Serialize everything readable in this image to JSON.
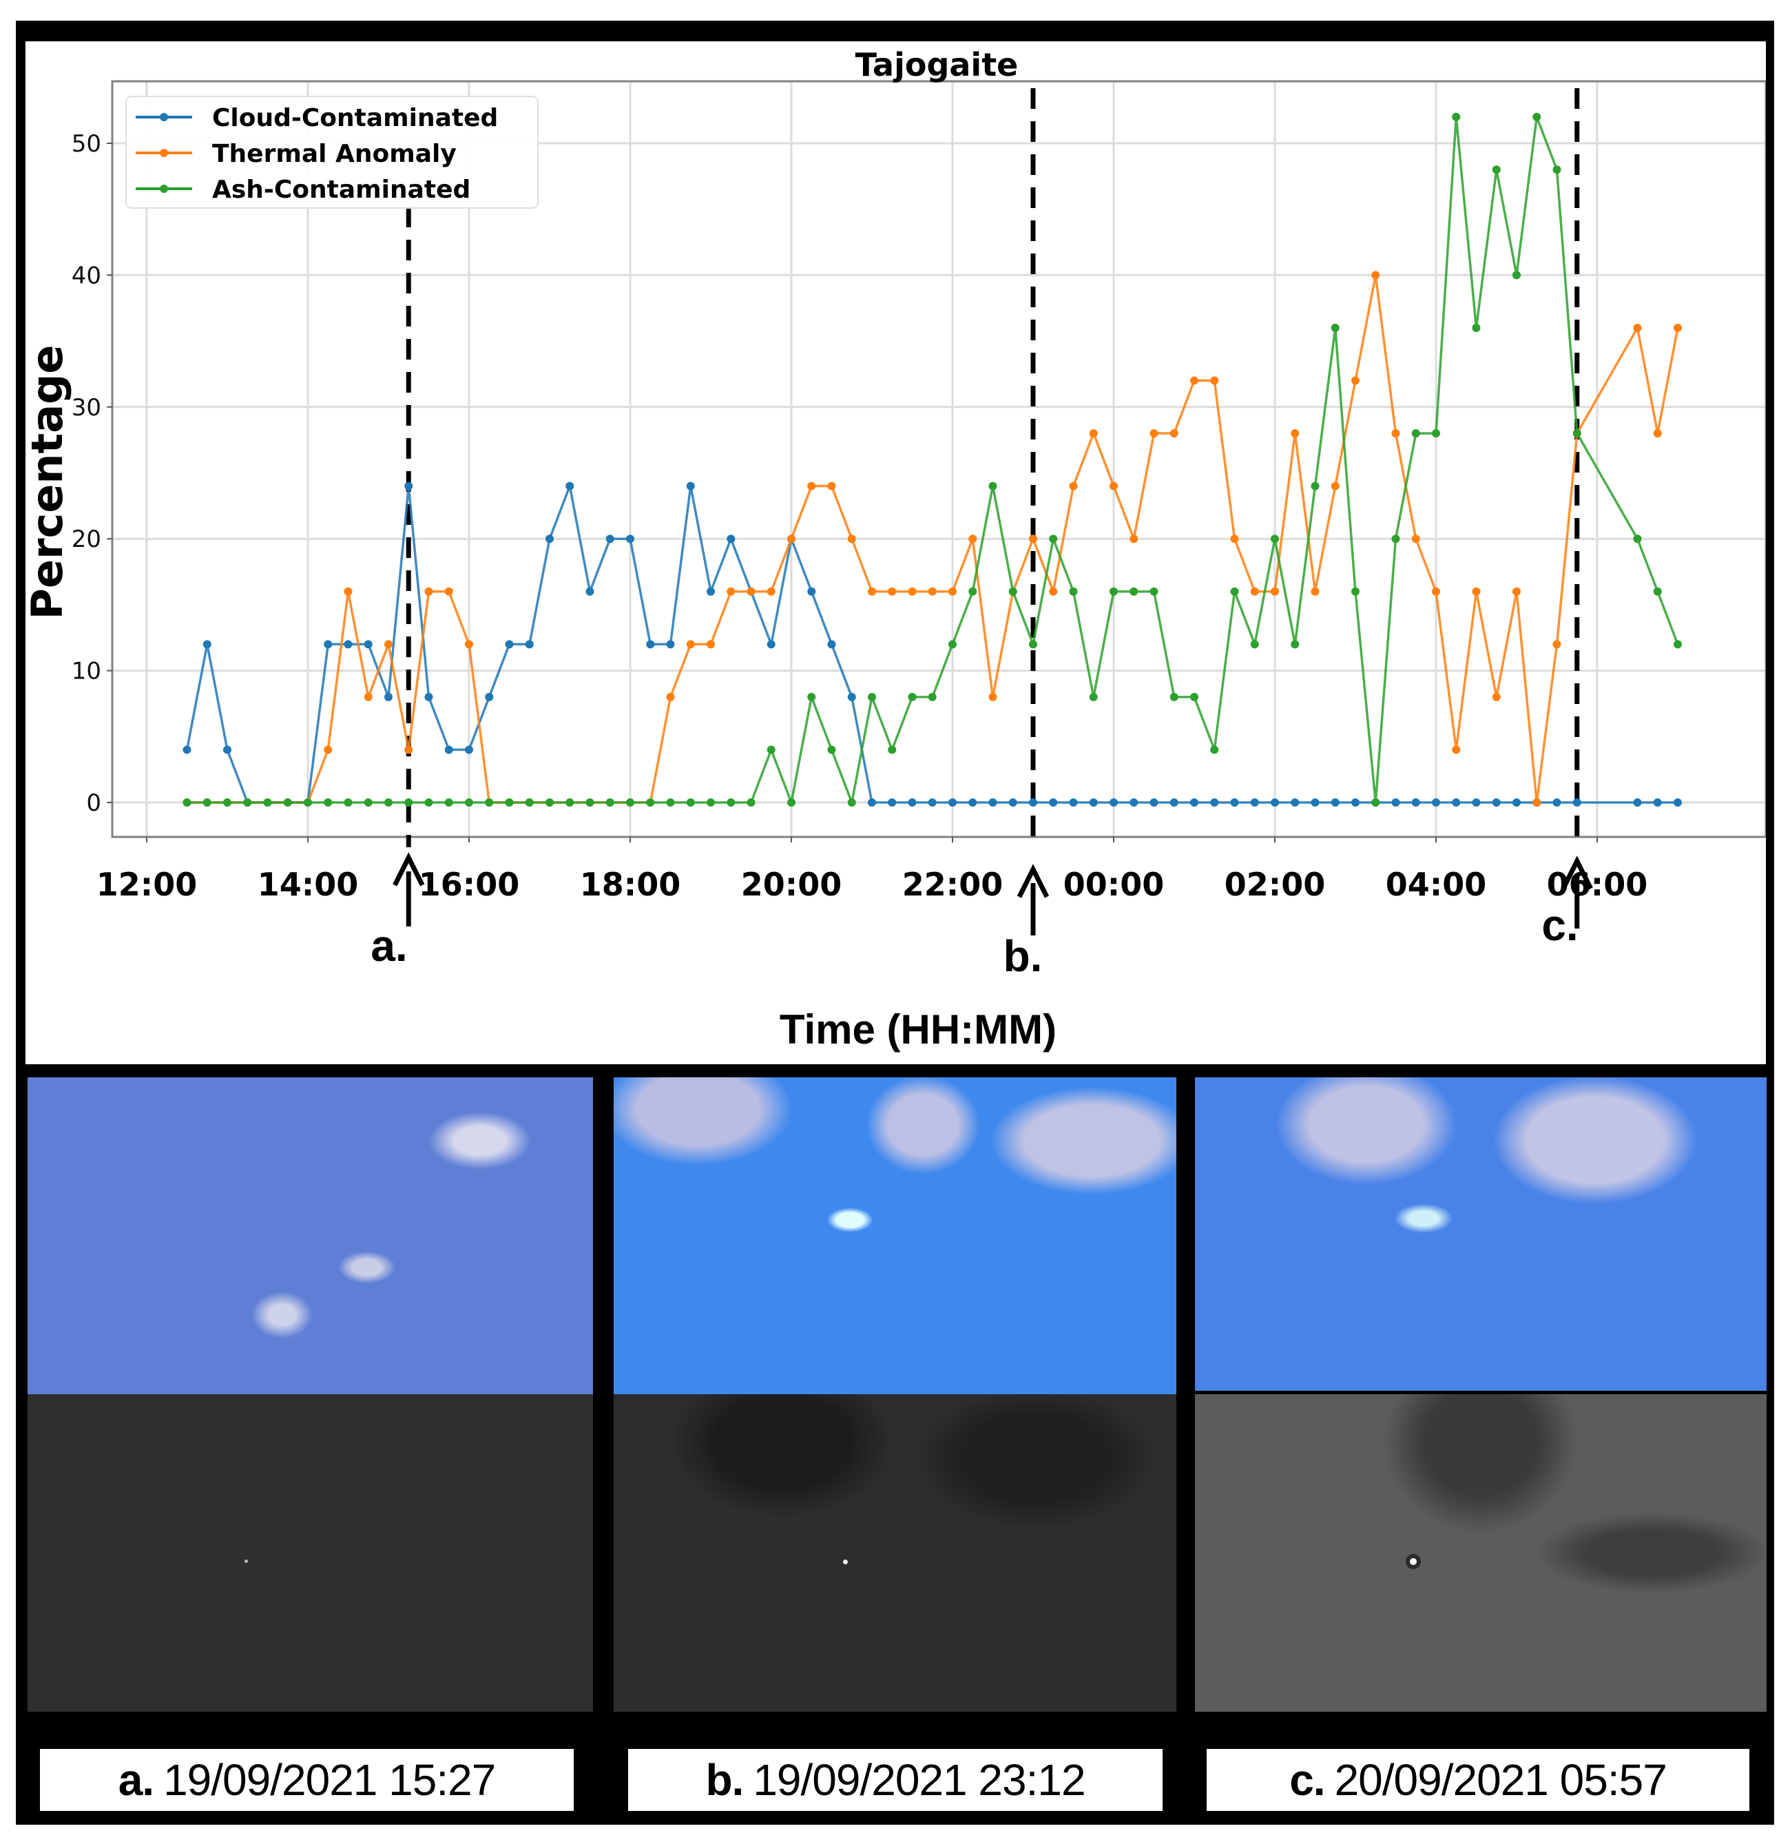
{
  "figure": {
    "title": "Tajogaite",
    "xlabel": "Time (HH:MM)",
    "ylabel": "Percentage",
    "colors": {
      "cloud": "#1f77b4",
      "thermal": "#ff7f0e",
      "ash": "#2ca02c",
      "frame": "#000000"
    }
  },
  "events": [
    {
      "id": "a",
      "label": "a.",
      "time": "15:15"
    },
    {
      "id": "b",
      "label": "b.",
      "time": "23:00"
    },
    {
      "id": "c",
      "label": "c.",
      "time": "05:45"
    }
  ],
  "captions": [
    {
      "letter": "a.",
      "text": "19/09/2021 15:27"
    },
    {
      "letter": "b.",
      "text": "19/09/2021 23:12"
    },
    {
      "letter": "c.",
      "text": "20/09/2021 05:57"
    }
  ],
  "chart_data": {
    "type": "line",
    "title": "Tajogaite",
    "xlabel": "Time (HH:MM)",
    "ylabel": "Percentage",
    "xticks": [
      "12:00",
      "14:00",
      "16:00",
      "18:00",
      "20:00",
      "22:00",
      "00:00",
      "02:00",
      "04:00",
      "06:00"
    ],
    "yticks": [
      0,
      10,
      20,
      30,
      40,
      50
    ],
    "ylim": [
      -2.5,
      54.5
    ],
    "grid": true,
    "legend_position": "upper left",
    "x": [
      "12:30",
      "12:45",
      "13:00",
      "13:15",
      "13:30",
      "13:45",
      "14:00",
      "14:15",
      "14:30",
      "14:45",
      "15:00",
      "15:15",
      "15:30",
      "15:45",
      "16:00",
      "16:15",
      "16:30",
      "16:45",
      "17:00",
      "17:15",
      "17:30",
      "17:45",
      "18:00",
      "18:15",
      "18:30",
      "18:45",
      "19:00",
      "19:15",
      "19:30",
      "19:45",
      "20:00",
      "20:15",
      "20:30",
      "20:45",
      "21:00",
      "21:15",
      "21:30",
      "21:45",
      "22:00",
      "22:15",
      "22:30",
      "22:45",
      "23:00",
      "23:15",
      "23:30",
      "23:45",
      "00:00",
      "00:15",
      "00:30",
      "00:45",
      "01:00",
      "01:15",
      "01:30",
      "01:45",
      "02:00",
      "02:15",
      "02:30",
      "02:45",
      "03:00",
      "03:15",
      "03:30",
      "03:45",
      "04:00",
      "04:15",
      "04:30",
      "04:45",
      "05:00",
      "05:15",
      "05:30",
      "05:45",
      "06:30",
      "06:45",
      "07:00"
    ],
    "series": [
      {
        "name": "Cloud-Contaminated",
        "color": "#1f77b4",
        "values": [
          4,
          12,
          4,
          0,
          0,
          0,
          0,
          12,
          12,
          12,
          8,
          24,
          8,
          4,
          4,
          8,
          12,
          12,
          20,
          24,
          16,
          20,
          20,
          12,
          12,
          24,
          16,
          20,
          16,
          12,
          20,
          16,
          12,
          8,
          0,
          0,
          0,
          0,
          0,
          0,
          0,
          0,
          0,
          0,
          0,
          0,
          0,
          0,
          0,
          0,
          0,
          0,
          0,
          0,
          0,
          0,
          0,
          0,
          0,
          0,
          0,
          0,
          0,
          0,
          0,
          0,
          0,
          0,
          0,
          0,
          0,
          0,
          0
        ]
      },
      {
        "name": "Thermal Anomaly",
        "color": "#ff7f0e",
        "values": [
          0,
          0,
          0,
          0,
          0,
          0,
          0,
          4,
          16,
          8,
          12,
          4,
          16,
          16,
          12,
          0,
          0,
          0,
          0,
          0,
          0,
          0,
          0,
          0,
          8,
          12,
          12,
          16,
          16,
          16,
          20,
          24,
          24,
          20,
          16,
          16,
          16,
          16,
          16,
          20,
          8,
          16,
          20,
          16,
          24,
          28,
          24,
          20,
          28,
          28,
          32,
          32,
          20,
          16,
          16,
          28,
          16,
          24,
          32,
          40,
          28,
          20,
          16,
          4,
          16,
          8,
          16,
          0,
          12,
          28,
          36,
          28,
          36
        ]
      },
      {
        "name": "Ash-Contaminated",
        "color": "#2ca02c",
        "values": [
          0,
          0,
          0,
          0,
          0,
          0,
          0,
          0,
          0,
          0,
          0,
          0,
          0,
          0,
          0,
          0,
          0,
          0,
          0,
          0,
          0,
          0,
          0,
          0,
          0,
          0,
          0,
          0,
          0,
          4,
          0,
          8,
          4,
          0,
          8,
          4,
          8,
          8,
          12,
          16,
          24,
          16,
          12,
          20,
          16,
          8,
          16,
          16,
          16,
          8,
          8,
          4,
          16,
          12,
          20,
          12,
          24,
          36,
          16,
          0,
          20,
          28,
          28,
          52,
          36,
          48,
          40,
          52,
          48,
          28,
          20,
          16,
          12
        ]
      }
    ],
    "vlines": [
      {
        "label": "a.",
        "x": "15:15",
        "style": "dashed"
      },
      {
        "label": "b.",
        "x": "23:00",
        "style": "dashed"
      },
      {
        "label": "c.",
        "x": "05:45",
        "style": "dashed"
      }
    ]
  }
}
